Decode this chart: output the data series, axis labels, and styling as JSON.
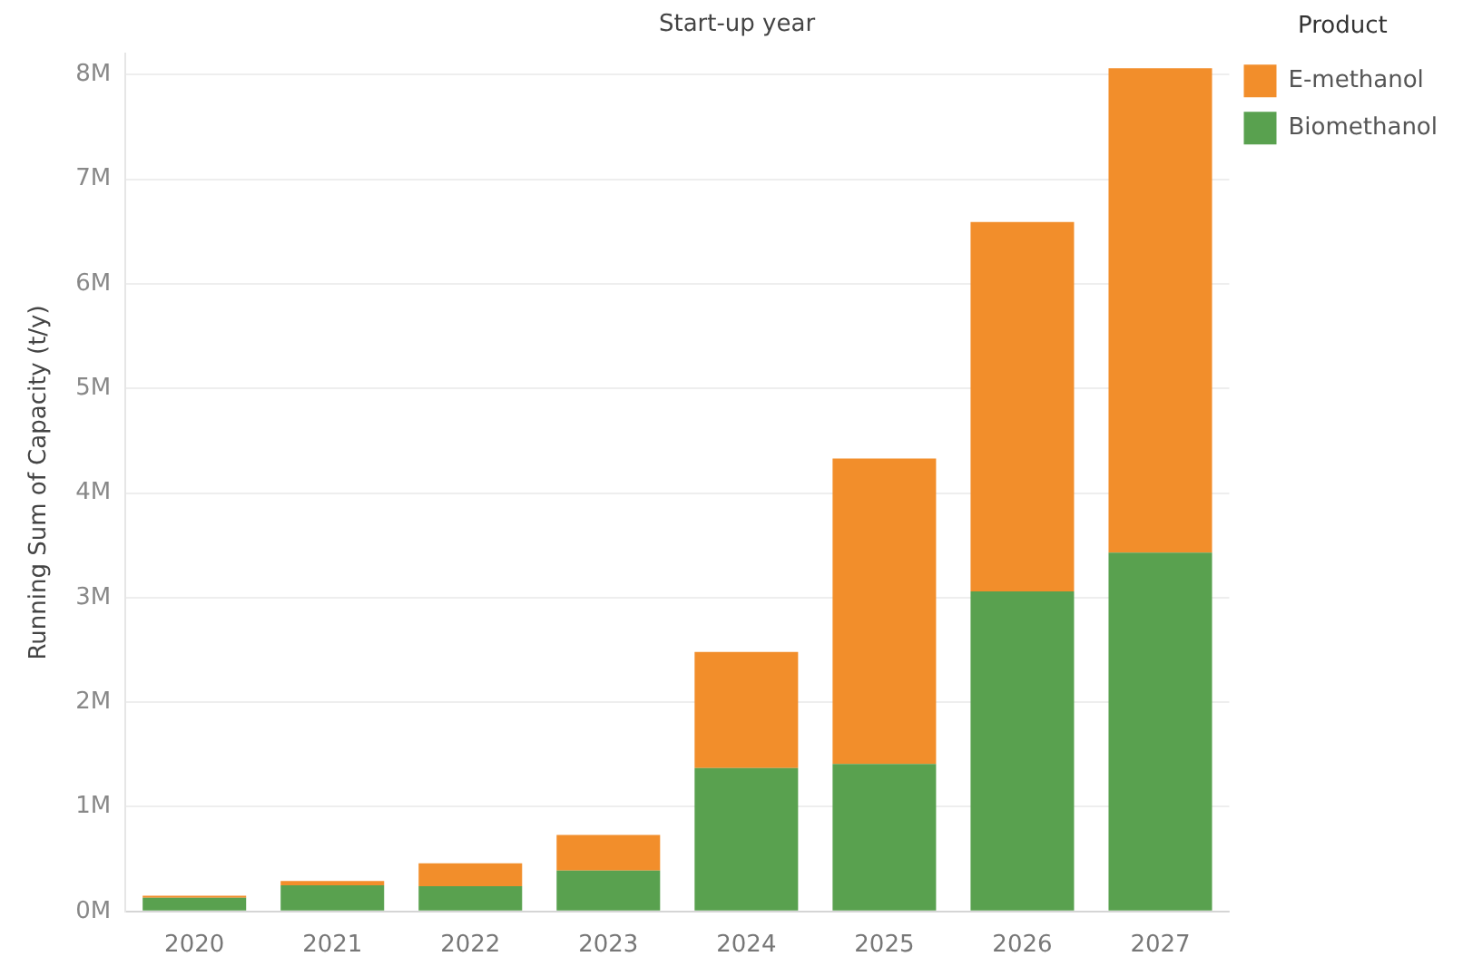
{
  "chart_data": {
    "type": "bar",
    "title": "Start-up year",
    "ylabel": "Running Sum of Capacity (t/y)",
    "legend_title": "Product",
    "categories": [
      "2020",
      "2021",
      "2022",
      "2023",
      "2024",
      "2025",
      "2026",
      "2027"
    ],
    "stacked": true,
    "series": [
      {
        "name": "Biomethanol",
        "color": "#59a14f",
        "values": [
          0.13,
          0.25,
          0.24,
          0.39,
          1.37,
          1.41,
          3.06,
          3.43
        ]
      },
      {
        "name": "E-methanol",
        "color": "#f28e2b",
        "values": [
          0.02,
          0.04,
          0.22,
          0.34,
          1.11,
          2.92,
          3.53,
          4.63
        ]
      }
    ],
    "ylim": [
      0,
      8.2
    ],
    "yticks": [
      {
        "value": 0,
        "label": "0M"
      },
      {
        "value": 1,
        "label": "1M"
      },
      {
        "value": 2,
        "label": "2M"
      },
      {
        "value": 3,
        "label": "3M"
      },
      {
        "value": 4,
        "label": "4M"
      },
      {
        "value": 5,
        "label": "5M"
      },
      {
        "value": 6,
        "label": "6M"
      },
      {
        "value": 7,
        "label": "7M"
      },
      {
        "value": 8,
        "label": "8M"
      }
    ],
    "grid": "y",
    "legend": "top right"
  }
}
